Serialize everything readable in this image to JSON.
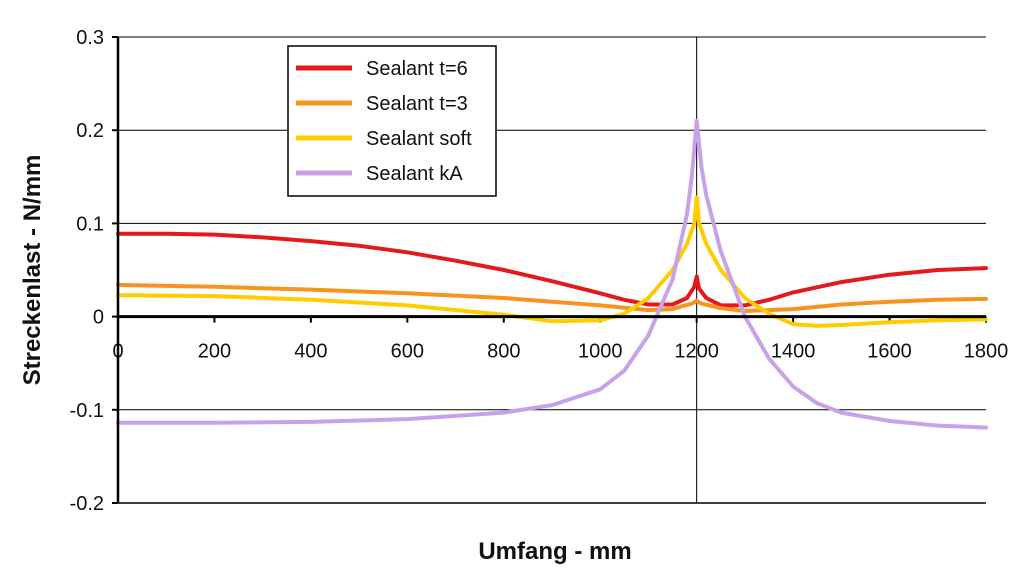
{
  "chart_data": {
    "type": "line",
    "title": "",
    "xlabel": "Umfang - mm",
    "ylabel": "Streckenlast - N/mm",
    "xlim": [
      0,
      1800
    ],
    "ylim": [
      -0.2,
      0.3
    ],
    "x_ticks": [
      "0",
      "200",
      "400",
      "600",
      "800",
      "1000",
      "1200",
      "1400",
      "1600",
      "1800"
    ],
    "y_ticks": [
      "0.3",
      "0.2",
      "0.1",
      "0",
      "-0.1",
      "-0.2"
    ],
    "grid": "horizontal at y ticks; vertical line at x=1200",
    "legend_position": "top-left",
    "series": [
      {
        "name": "Sealant t=6",
        "color": "#e31a1c",
        "x": [
          0,
          100,
          200,
          300,
          400,
          500,
          600,
          700,
          800,
          900,
          1000,
          1050,
          1100,
          1150,
          1180,
          1195,
          1200,
          1205,
          1220,
          1250,
          1300,
          1350,
          1400,
          1500,
          1600,
          1700,
          1800
        ],
        "y": [
          0.089,
          0.089,
          0.088,
          0.085,
          0.081,
          0.076,
          0.069,
          0.06,
          0.05,
          0.038,
          0.025,
          0.018,
          0.013,
          0.013,
          0.02,
          0.032,
          0.043,
          0.03,
          0.02,
          0.012,
          0.012,
          0.018,
          0.026,
          0.037,
          0.045,
          0.05,
          0.052
        ]
      },
      {
        "name": "Sealant t=3",
        "color": "#f7941d",
        "x": [
          0,
          200,
          400,
          600,
          800,
          1000,
          1100,
          1150,
          1190,
          1200,
          1210,
          1250,
          1300,
          1400,
          1500,
          1600,
          1700,
          1800
        ],
        "y": [
          0.034,
          0.032,
          0.029,
          0.025,
          0.02,
          0.012,
          0.007,
          0.008,
          0.014,
          0.017,
          0.014,
          0.009,
          0.006,
          0.008,
          0.013,
          0.016,
          0.018,
          0.019
        ]
      },
      {
        "name": "Sealant soft",
        "color": "#ffcc00",
        "x": [
          0,
          200,
          400,
          600,
          800,
          900,
          1000,
          1050,
          1100,
          1150,
          1180,
          1195,
          1200,
          1205,
          1220,
          1250,
          1300,
          1350,
          1400,
          1450,
          1500,
          1600,
          1700,
          1800
        ],
        "y": [
          0.023,
          0.022,
          0.018,
          0.012,
          0.002,
          -0.005,
          -0.004,
          0.003,
          0.02,
          0.05,
          0.078,
          0.1,
          0.128,
          0.1,
          0.078,
          0.05,
          0.02,
          0.003,
          -0.008,
          -0.01,
          -0.009,
          -0.006,
          -0.004,
          -0.003
        ]
      },
      {
        "name": "Sealant kA",
        "color": "#c8a2e8",
        "x": [
          0,
          200,
          400,
          600,
          800,
          900,
          1000,
          1050,
          1100,
          1150,
          1180,
          1190,
          1200,
          1210,
          1220,
          1250,
          1300,
          1350,
          1400,
          1450,
          1500,
          1600,
          1700,
          1800
        ],
        "y": [
          -0.114,
          -0.114,
          -0.113,
          -0.11,
          -0.103,
          -0.095,
          -0.078,
          -0.058,
          -0.02,
          0.04,
          0.11,
          0.15,
          0.21,
          0.16,
          0.13,
          0.07,
          0.0,
          -0.045,
          -0.075,
          -0.093,
          -0.103,
          -0.112,
          -0.117,
          -0.119
        ]
      }
    ]
  }
}
